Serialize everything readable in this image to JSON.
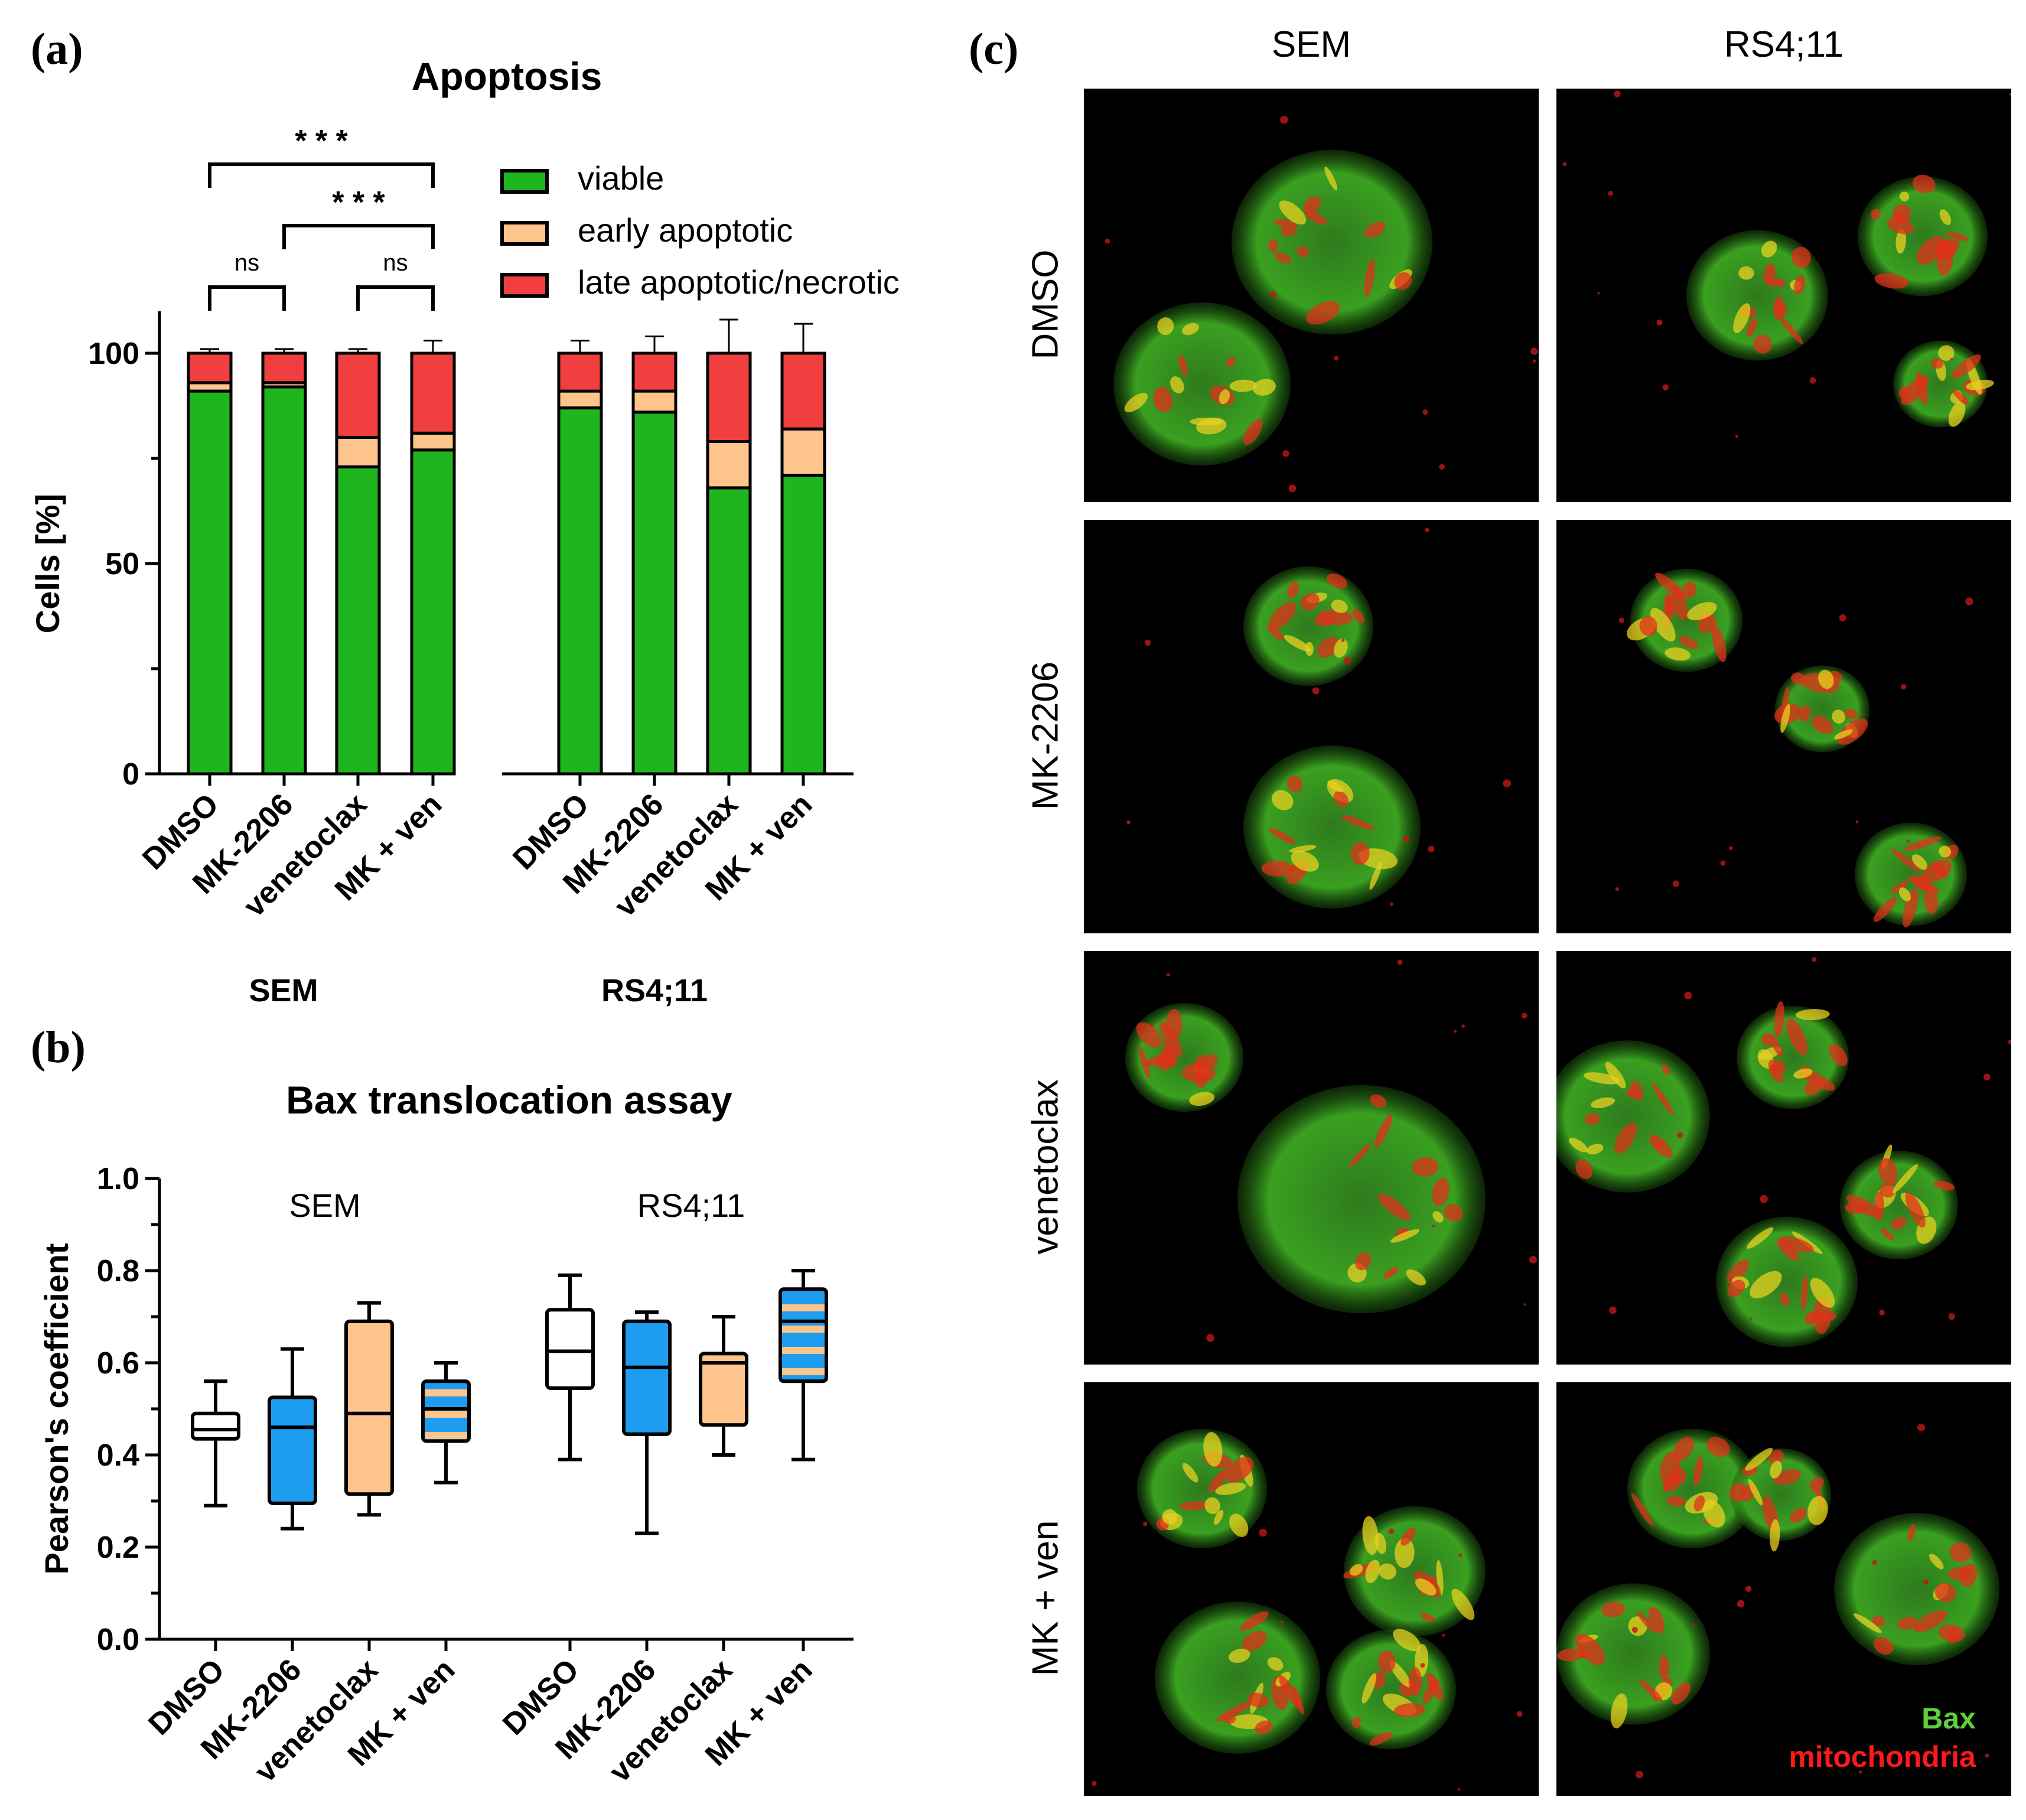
{
  "panel_labels": {
    "a": "(a)",
    "b": "(b)",
    "c": "(c)"
  },
  "chart_data": [
    {
      "type": "bar",
      "stacked": true,
      "title": "Apoptosis",
      "ylabel": "Cells [%]",
      "ylim": [
        0,
        110
      ],
      "yticks": [
        0,
        50,
        100
      ],
      "groups": [
        {
          "name": "SEM",
          "categories": [
            "DMSO",
            "MK-2206",
            "venetoclax",
            "MK + ven"
          ]
        },
        {
          "name": "RS4;11",
          "categories": [
            "DMSO",
            "MK-2206",
            "venetoclax",
            "MK + ven"
          ]
        }
      ],
      "series": [
        {
          "name": "viable",
          "color": "#1fb51f",
          "values": [
            91,
            92,
            73,
            77,
            87,
            86,
            68,
            71
          ],
          "errors": [
            2,
            1,
            2,
            2,
            3,
            3,
            4,
            4
          ]
        },
        {
          "name": "early apoptotic",
          "color": "#fdc48b",
          "values": [
            2,
            1,
            7,
            4,
            4,
            5,
            11,
            11
          ],
          "errors": [
            1,
            1,
            1,
            2,
            3,
            3,
            9,
            11
          ]
        },
        {
          "name": "late apoptotic/necrotic",
          "color": "#f13e3e",
          "values": [
            7,
            7,
            20,
            19,
            9,
            9,
            21,
            18
          ],
          "errors": [
            1,
            1,
            1,
            3,
            3,
            4,
            8,
            7
          ]
        }
      ],
      "significance": [
        {
          "from": 0,
          "to": 3,
          "label": "* * *"
        },
        {
          "from": 1,
          "to": 3,
          "label": "* * *"
        },
        {
          "from": 0,
          "to": 1,
          "label": "ns"
        },
        {
          "from": 2,
          "to": 3,
          "label": "ns"
        }
      ],
      "legend_position": "top-right",
      "grid": false
    },
    {
      "type": "box",
      "title": "Bax translocation assay",
      "ylabel": "Pearson's coefficient",
      "ylim": [
        0,
        1.0
      ],
      "yticks": [
        "0.0",
        "0.2",
        "0.4",
        "0.6",
        "0.8",
        "1.0"
      ],
      "group_labels": [
        "SEM",
        "RS4;11"
      ],
      "categories": [
        "DMSO",
        "MK-2206",
        "venetoclax",
        "MK + ven",
        "DMSO",
        "MK-2206",
        "venetoclax",
        "MK + ven"
      ],
      "boxes": [
        {
          "min": 0.29,
          "q1": 0.435,
          "median": 0.455,
          "q3": 0.49,
          "max": 0.56,
          "fill": "white"
        },
        {
          "min": 0.24,
          "q1": 0.295,
          "median": 0.46,
          "q3": 0.525,
          "max": 0.63,
          "fill": "blue"
        },
        {
          "min": 0.27,
          "q1": 0.315,
          "median": 0.49,
          "q3": 0.69,
          "max": 0.73,
          "fill": "orange"
        },
        {
          "min": 0.34,
          "q1": 0.43,
          "median": 0.5,
          "q3": 0.56,
          "max": 0.6,
          "fill": "striped"
        },
        {
          "min": 0.39,
          "q1": 0.545,
          "median": 0.625,
          "q3": 0.715,
          "max": 0.79,
          "fill": "white"
        },
        {
          "min": 0.23,
          "q1": 0.445,
          "median": 0.59,
          "q3": 0.69,
          "max": 0.71,
          "fill": "blue"
        },
        {
          "min": 0.4,
          "q1": 0.465,
          "median": 0.6,
          "q3": 0.62,
          "max": 0.7,
          "fill": "orange"
        },
        {
          "min": 0.39,
          "q1": 0.56,
          "median": 0.69,
          "q3": 0.76,
          "max": 0.8,
          "fill": "striped"
        }
      ],
      "colors": {
        "white": "#ffffff",
        "blue": "#1e9cf0",
        "orange": "#fdc48b",
        "stripe": "#fdc48b"
      },
      "grid": false
    }
  ],
  "micrographs": {
    "columns": [
      "SEM",
      "RS4;11"
    ],
    "rows": [
      "DMSO",
      "MK-2206",
      "venetoclax",
      "MK + ven"
    ],
    "legend": {
      "bax": "Bax",
      "bax_color": "#5fcf3a",
      "mito": "mitochondria",
      "mito_color": "#ff1a1a"
    }
  }
}
